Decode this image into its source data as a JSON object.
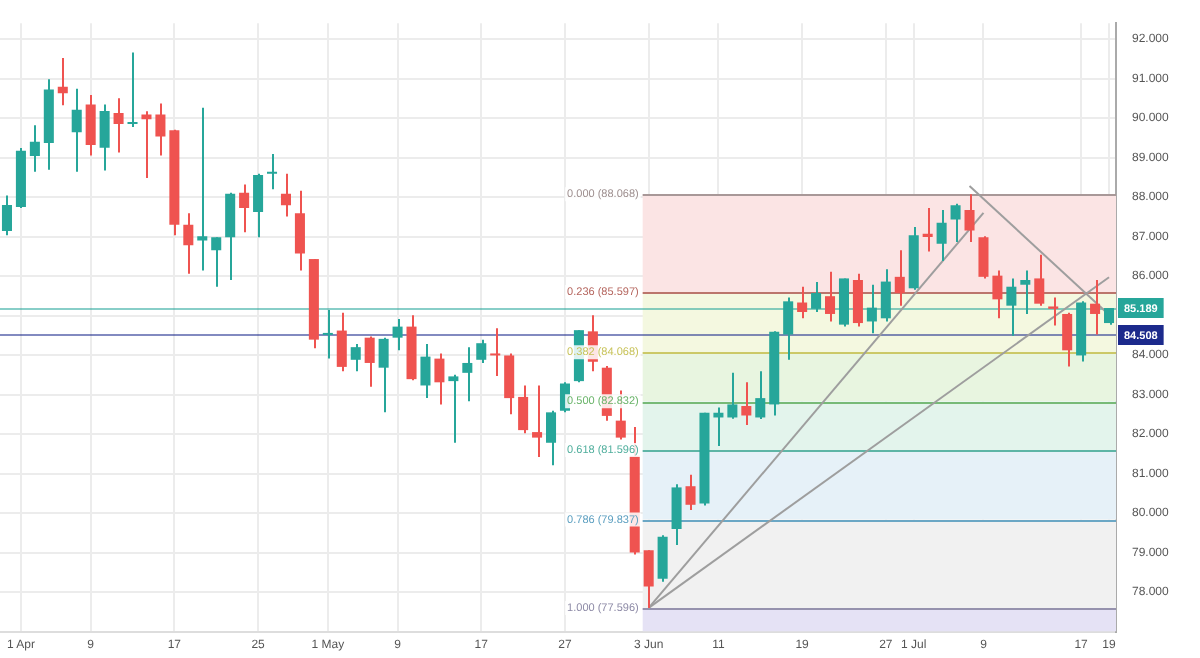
{
  "chart_data": {
    "type": "candlestick",
    "categories": [
      null,
      "1 Apr",
      null,
      null,
      null,
      null,
      "9",
      null,
      null,
      null,
      null,
      null,
      "17",
      null,
      null,
      null,
      null,
      null,
      "25",
      null,
      null,
      null,
      null,
      "1 May",
      null,
      null,
      null,
      null,
      "9",
      null,
      null,
      null,
      null,
      null,
      "17",
      null,
      null,
      null,
      null,
      null,
      "27",
      null,
      null,
      null,
      null,
      null,
      "3 Jun",
      null,
      null,
      null,
      null,
      "11",
      null,
      null,
      null,
      null,
      null,
      "19",
      null,
      null,
      null,
      null,
      null,
      "27",
      null,
      "1 Jul",
      null,
      null,
      null,
      null,
      "9",
      null,
      null,
      null,
      null,
      null,
      null,
      "17",
      null,
      "19"
    ],
    "ohlc": [
      [
        87.14,
        88.04,
        87.03,
        87.8
      ],
      [
        87.75,
        89.24,
        87.72,
        89.17
      ],
      [
        89.04,
        89.82,
        88.64,
        89.4
      ],
      [
        89.37,
        90.98,
        88.69,
        90.72
      ],
      [
        90.79,
        91.52,
        90.32,
        90.63
      ],
      [
        89.64,
        90.74,
        88.64,
        90.21
      ],
      [
        90.34,
        90.58,
        89.05,
        89.32
      ],
      [
        89.25,
        90.34,
        88.67,
        90.18
      ],
      [
        90.13,
        90.5,
        89.13,
        89.85
      ],
      [
        89.85,
        91.66,
        89.77,
        89.88
      ],
      [
        90.09,
        90.17,
        88.48,
        89.97
      ],
      [
        90.09,
        90.37,
        89.05,
        89.53
      ],
      [
        89.69,
        89.7,
        87.03,
        87.3
      ],
      [
        87.3,
        87.59,
        86.06,
        86.78
      ],
      [
        86.9,
        90.26,
        86.14,
        87.01
      ],
      [
        86.65,
        86.98,
        85.73,
        86.98
      ],
      [
        86.98,
        88.11,
        85.9,
        88.08
      ],
      [
        88.11,
        88.32,
        87.11,
        87.72
      ],
      [
        87.62,
        88.59,
        86.98,
        88.56
      ],
      [
        88.59,
        89.09,
        88.2,
        88.62
      ],
      [
        88.08,
        88.59,
        87.51,
        87.79
      ],
      [
        87.59,
        88.16,
        86.14,
        86.57
      ],
      [
        86.43,
        86.43,
        84.17,
        84.39
      ],
      [
        84.51,
        85.14,
        83.91,
        84.52
      ],
      [
        84.62,
        85.07,
        83.59,
        83.7
      ],
      [
        83.88,
        84.28,
        83.59,
        84.2
      ],
      [
        84.44,
        84.47,
        83.2,
        83.8
      ],
      [
        83.68,
        84.44,
        82.55,
        84.41
      ],
      [
        84.44,
        84.91,
        84.12,
        84.72
      ],
      [
        84.72,
        85.01,
        83.36,
        83.39
      ],
      [
        83.23,
        84.28,
        82.91,
        83.96
      ],
      [
        83.91,
        84.04,
        82.75,
        83.31
      ],
      [
        83.34,
        83.5,
        81.78,
        83.46
      ],
      [
        83.55,
        84.2,
        82.83,
        83.8
      ],
      [
        83.88,
        84.39,
        83.8,
        84.3
      ],
      [
        84.02,
        84.68,
        83.47,
        83.99
      ],
      [
        83.99,
        84.04,
        82.5,
        82.91
      ],
      [
        82.94,
        83.23,
        82.02,
        82.1
      ],
      [
        82.05,
        83.23,
        81.42,
        81.91
      ],
      [
        81.78,
        82.59,
        81.21,
        82.55
      ],
      [
        82.59,
        83.31,
        82.55,
        83.28
      ],
      [
        83.34,
        84.63,
        83.31,
        84.63
      ],
      [
        84.6,
        85.01,
        83.59,
        83.83
      ],
      [
        83.68,
        83.72,
        82.34,
        82.46
      ],
      [
        82.34,
        83.1,
        81.86,
        81.91
      ],
      [
        81.45,
        82.18,
        78.95,
        79.0
      ],
      [
        79.06,
        79.06,
        77.6,
        78.14
      ],
      [
        78.34,
        79.44,
        78.26,
        79.4
      ],
      [
        79.6,
        80.73,
        79.19,
        80.65
      ],
      [
        80.68,
        80.97,
        80.08,
        80.21
      ],
      [
        80.24,
        82.54,
        80.19,
        82.54
      ],
      [
        82.42,
        82.67,
        81.7,
        82.54
      ],
      [
        82.42,
        83.55,
        82.39,
        82.75
      ],
      [
        82.71,
        83.31,
        82.23,
        82.47
      ],
      [
        82.42,
        83.59,
        82.38,
        82.91
      ],
      [
        82.75,
        84.6,
        82.47,
        84.59
      ],
      [
        84.52,
        85.46,
        83.88,
        85.36
      ],
      [
        85.33,
        85.73,
        84.93,
        85.09
      ],
      [
        85.17,
        85.85,
        85.09,
        85.57
      ],
      [
        85.49,
        86.11,
        84.85,
        85.04
      ],
      [
        84.77,
        85.94,
        84.72,
        85.94
      ],
      [
        85.9,
        86.06,
        84.72,
        84.81
      ],
      [
        84.85,
        85.78,
        84.55,
        85.2
      ],
      [
        84.93,
        86.17,
        84.85,
        85.86
      ],
      [
        85.98,
        86.65,
        85.25,
        85.57
      ],
      [
        85.69,
        87.24,
        85.65,
        87.03
      ],
      [
        87.07,
        87.72,
        86.62,
        86.99
      ],
      [
        86.82,
        87.67,
        86.38,
        87.35
      ],
      [
        87.43,
        87.83,
        86.86,
        87.79
      ],
      [
        87.67,
        88.07,
        86.86,
        87.15
      ],
      [
        86.98,
        87.01,
        85.94,
        85.98
      ],
      [
        86.01,
        86.14,
        84.93,
        85.41
      ],
      [
        85.25,
        85.94,
        84.49,
        85.73
      ],
      [
        85.78,
        86.14,
        85.04,
        85.9
      ],
      [
        85.94,
        86.54,
        85.25,
        85.3
      ],
      [
        85.23,
        85.46,
        84.75,
        85.17
      ],
      [
        85.04,
        85.07,
        83.71,
        84.12
      ],
      [
        83.99,
        85.36,
        83.84,
        85.33
      ],
      [
        85.3,
        85.9,
        84.52,
        85.04
      ],
      [
        84.81,
        85.19,
        84.77,
        85.19
      ]
    ],
    "colors": [
      "#26a69a",
      "#26a69a",
      "#26a69a",
      "#26a69a",
      "#ef5350",
      "#26a69a",
      "#ef5350",
      "#26a69a",
      "#ef5350",
      "#26a69a",
      "#ef5350",
      "#ef5350",
      "#ef5350",
      "#ef5350",
      "#26a69a",
      "#26a69a",
      "#26a69a",
      "#ef5350",
      "#26a69a",
      "#26a69a",
      "#ef5350",
      "#ef5350",
      "#ef5350",
      "#26a69a",
      "#ef5350",
      "#26a69a",
      "#ef5350",
      "#26a69a",
      "#26a69a",
      "#ef5350",
      "#26a69a",
      "#ef5350",
      "#26a69a",
      "#26a69a",
      "#26a69a",
      "#ef5350",
      "#ef5350",
      "#ef5350",
      "#ef5350",
      "#26a69a",
      "#26a69a",
      "#26a69a",
      "#ef5350",
      "#ef5350",
      "#ef5350",
      "#ef5350",
      "#ef5350",
      "#26a69a",
      "#26a69a",
      "#ef5350",
      "#26a69a",
      "#26a69a",
      "#26a69a",
      "#ef5350",
      "#26a69a",
      "#26a69a",
      "#26a69a",
      "#ef5350",
      "#26a69a",
      "#ef5350",
      "#26a69a",
      "#ef5350",
      "#26a69a",
      "#26a69a",
      "#ef5350",
      "#26a69a",
      "#ef5350",
      "#26a69a",
      "#26a69a",
      "#ef5350",
      "#ef5350",
      "#ef5350",
      "#26a69a",
      "#26a69a",
      "#ef5350",
      "#ef5350",
      "#ef5350",
      "#26a69a",
      "#ef5350",
      "#26a69a"
    ],
    "series": [
      {
        "type": "line",
        "color": "#9e9e9e",
        "values": [
          null,
          null,
          null,
          null,
          null,
          null,
          null,
          null,
          null,
          null,
          null,
          null,
          null,
          null,
          null,
          null,
          null,
          null,
          null,
          null,
          null,
          null,
          null,
          null,
          null,
          null,
          null,
          null,
          null,
          null,
          null,
          null,
          null,
          null,
          null,
          null,
          null,
          null,
          null,
          null,
          null,
          null,
          null,
          null,
          null,
          null,
          77.6,
          null,
          null,
          null,
          null,
          null,
          null,
          null,
          null,
          null,
          null,
          null,
          null,
          null,
          null,
          null,
          null,
          null,
          null,
          null,
          null,
          null,
          null,
          null,
          87.6,
          null,
          null,
          null,
          null,
          null,
          null,
          null,
          null,
          null
        ]
      },
      {
        "type": "line",
        "color": "#9e9e9e",
        "values": [
          null,
          null,
          null,
          null,
          null,
          null,
          null,
          null,
          null,
          null,
          null,
          null,
          null,
          null,
          null,
          null,
          null,
          null,
          null,
          null,
          null,
          null,
          null,
          null,
          null,
          null,
          null,
          null,
          null,
          null,
          null,
          null,
          null,
          null,
          null,
          null,
          null,
          null,
          null,
          null,
          null,
          null,
          null,
          null,
          null,
          null,
          77.6,
          null,
          null,
          null,
          null,
          null,
          null,
          null,
          null,
          null,
          null,
          null,
          null,
          null,
          null,
          null,
          null,
          null,
          null,
          null,
          null,
          null,
          null,
          null,
          null,
          null,
          null,
          null,
          null,
          null,
          null,
          null,
          null,
          85.97
        ]
      },
      {
        "type": "line",
        "color": "#9e9e9e",
        "values": [
          null,
          null,
          null,
          null,
          null,
          null,
          null,
          null,
          null,
          null,
          null,
          null,
          null,
          null,
          null,
          null,
          null,
          null,
          null,
          null,
          null,
          null,
          null,
          null,
          null,
          null,
          null,
          null,
          null,
          null,
          null,
          null,
          null,
          null,
          null,
          null,
          null,
          null,
          null,
          null,
          null,
          null,
          null,
          null,
          null,
          null,
          null,
          null,
          null,
          null,
          null,
          null,
          null,
          null,
          null,
          null,
          null,
          null,
          null,
          null,
          null,
          null,
          null,
          null,
          null,
          null,
          null,
          null,
          null,
          88.28,
          null,
          null,
          null,
          null,
          null,
          null,
          null,
          null,
          null,
          85.02
        ]
      }
    ],
    "ylim": [
      77.0,
      92.4
    ],
    "yticks": [
      {
        "value": 78,
        "label": "78.000"
      },
      {
        "value": 79,
        "label": "79.000"
      },
      {
        "value": 80,
        "label": "80.000"
      },
      {
        "value": 81,
        "label": "81.000"
      },
      {
        "value": 82,
        "label": "82.000"
      },
      {
        "value": 83,
        "label": "83.000"
      },
      {
        "value": 84,
        "label": "84.000"
      },
      {
        "value": 85,
        "label": null
      },
      {
        "value": 86,
        "label": "86.000"
      },
      {
        "value": 87,
        "label": "87.000"
      },
      {
        "value": 88,
        "label": "88.000"
      },
      {
        "value": 89,
        "label": "89.000"
      },
      {
        "value": 90,
        "label": "90.000"
      },
      {
        "value": 91,
        "label": "91.000"
      },
      {
        "value": 92,
        "label": "92.000"
      }
    ],
    "grid": true,
    "ref_lines": [
      {
        "axis": "y",
        "value": 88.068,
        "label": "0.000 (88.068)",
        "color": "#9e8f8f"
      },
      {
        "axis": "y",
        "value": 85.597,
        "label": "0.236 (85.597)",
        "color": "#b5665f"
      },
      {
        "axis": "y",
        "value": 84.068,
        "label": "0.382 (84.068)",
        "color": "#c8c35a"
      },
      {
        "axis": "y",
        "value": 82.832,
        "label": "0.500 (82.832)",
        "color": "#6ab46a"
      },
      {
        "axis": "y",
        "value": 81.596,
        "label": "0.618 (81.596)",
        "color": "#4fae9c"
      },
      {
        "axis": "y",
        "value": 79.837,
        "label": "0.786 (79.837)",
        "color": "#5c9fc0"
      },
      {
        "axis": "y",
        "value": 77.596,
        "label": "1.000 (77.596)",
        "color": "#8d8aa6"
      },
      {
        "axis": "y",
        "value": 85.189,
        "label": "85.189",
        "color": "#26a69a"
      },
      {
        "axis": "y",
        "value": 84.508,
        "label": "84.508",
        "color": "#1c2a8c"
      }
    ],
    "bands": [
      {
        "axis": "y",
        "from": 85.597,
        "to": 88.068,
        "color": "#fbe4e4"
      },
      {
        "axis": "y",
        "from": 84.068,
        "to": 85.597,
        "color": "#f4f8e0"
      },
      {
        "axis": "y",
        "from": 82.832,
        "to": 84.068,
        "color": "#e8f5e0"
      },
      {
        "axis": "y",
        "from": 81.596,
        "to": 82.832,
        "color": "#e3f4ec"
      },
      {
        "axis": "y",
        "from": 79.837,
        "to": 81.596,
        "color": "#e6f1f8"
      },
      {
        "axis": "y",
        "from": 77.596,
        "to": 79.837,
        "color": "#f1f1f1"
      },
      {
        "axis": "y",
        "from": 77.0,
        "to": 77.596,
        "color": "#e5e2f5"
      }
    ]
  }
}
